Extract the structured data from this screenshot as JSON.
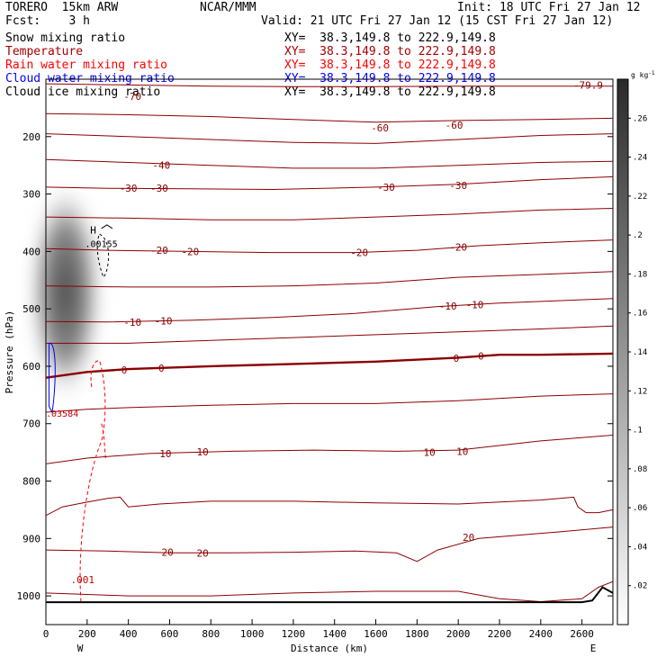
{
  "header": {
    "model": "TORERO  15km ARW",
    "center": "NCAR/MMM",
    "init": "Init: 18 UTC Fri 27 Jan 12",
    "fcst": "Fcst:    3 h",
    "valid": "Valid: 21 UTC Fri 27 Jan 12 (15 CST Fri 27 Jan 12)"
  },
  "legend": [
    {
      "name": "Snow mixing ratio",
      "color": "#000000",
      "xy": "XY=  38.3,149.8 to 222.9,149.8"
    },
    {
      "name": "Temperature",
      "color": "#a50000",
      "xy": "XY=  38.3,149.8 to 222.9,149.8"
    },
    {
      "name": "Rain water mixing ratio",
      "color": "#ff0000",
      "xy": "XY=  38.3,149.8 to 222.9,149.8"
    },
    {
      "name": "Cloud water mixing ratio",
      "color": "#0000ff",
      "xy": "XY=  38.3,149.8 to 222.9,149.8"
    },
    {
      "name": "Cloud ice mixing ratio",
      "color": "#000000",
      "xy": "XY=  38.3,149.8 to 222.9,149.8"
    }
  ],
  "chart_data": {
    "type": "contour-cross-section",
    "xlabel": "Distance (km)",
    "ylabel": "Pressure (hPa)",
    "xlim": [
      0,
      2750
    ],
    "ylim": [
      1050,
      100
    ],
    "x_ticks": [
      0,
      200,
      400,
      600,
      800,
      1000,
      1200,
      1400,
      1600,
      1800,
      2000,
      2200,
      2400,
      2600
    ],
    "y_ticks": [
      200,
      300,
      400,
      500,
      600,
      700,
      800,
      900,
      1000
    ],
    "end_labels": {
      "left": "W",
      "right": "E"
    },
    "colorbar": {
      "unit": "g kg",
      "unit_exp": "-1",
      "ticks": [
        ".02",
        ".04",
        ".06",
        ".08",
        ".1",
        ".12",
        ".14",
        ".16",
        ".18",
        ".2",
        ".22",
        ".24",
        ".26"
      ],
      "range": [
        0,
        0.28
      ]
    },
    "temperature_labels": [
      {
        "text": "-79.9",
        "x": 2630,
        "p": 110
      },
      {
        "text": "-70",
        "x": 420,
        "p": 130
      },
      {
        "text": "-60",
        "x": 1620,
        "p": 185
      },
      {
        "text": "-60",
        "x": 1980,
        "p": 180
      },
      {
        "text": "-40",
        "x": 560,
        "p": 250
      },
      {
        "text": "-30",
        "x": 400,
        "p": 290
      },
      {
        "text": "-30",
        "x": 550,
        "p": 290
      },
      {
        "text": "-30",
        "x": 1650,
        "p": 288
      },
      {
        "text": "-30",
        "x": 2000,
        "p": 285
      },
      {
        "text": "-20",
        "x": 550,
        "p": 398
      },
      {
        "text": "-20",
        "x": 700,
        "p": 400
      },
      {
        "text": "-20",
        "x": 1520,
        "p": 402
      },
      {
        "text": "-20",
        "x": 2000,
        "p": 392
      },
      {
        "text": "-10",
        "x": 420,
        "p": 523
      },
      {
        "text": "-10",
        "x": 570,
        "p": 521
      },
      {
        "text": "-10",
        "x": 1950,
        "p": 495
      },
      {
        "text": "-10",
        "x": 2080,
        "p": 493
      },
      {
        "text": "0",
        "x": 380,
        "p": 606
      },
      {
        "text": "0",
        "x": 560,
        "p": 603
      },
      {
        "text": "0",
        "x": 1990,
        "p": 586
      },
      {
        "text": "0",
        "x": 2110,
        "p": 582
      },
      {
        "text": "10",
        "x": 580,
        "p": 752
      },
      {
        "text": "10",
        "x": 760,
        "p": 749
      },
      {
        "text": "10",
        "x": 1860,
        "p": 750
      },
      {
        "text": "10",
        "x": 2020,
        "p": 748
      },
      {
        "text": "20",
        "x": 590,
        "p": 924
      },
      {
        "text": "20",
        "x": 760,
        "p": 925
      },
      {
        "text": "20",
        "x": 2050,
        "p": 898
      }
    ],
    "temperature_contours": [
      {
        "value": -70,
        "points": [
          [
            0,
            108
          ],
          [
            400,
            110
          ],
          [
            800,
            112
          ],
          [
            1200,
            113
          ],
          [
            1600,
            113
          ],
          [
            2000,
            112
          ],
          [
            2400,
            112
          ],
          [
            2750,
            112
          ]
        ]
      },
      {
        "value": -60,
        "points": [
          [
            0,
            160
          ],
          [
            400,
            162
          ],
          [
            800,
            165
          ],
          [
            1200,
            170
          ],
          [
            1600,
            175
          ],
          [
            2000,
            172
          ],
          [
            2400,
            170
          ],
          [
            2750,
            168
          ]
        ]
      },
      {
        "value": -50,
        "points": [
          [
            0,
            195
          ],
          [
            400,
            200
          ],
          [
            800,
            205
          ],
          [
            1200,
            210
          ],
          [
            1600,
            212
          ],
          [
            2000,
            205
          ],
          [
            2400,
            198
          ],
          [
            2750,
            195
          ]
        ]
      },
      {
        "value": -40,
        "points": [
          [
            0,
            240
          ],
          [
            400,
            245
          ],
          [
            800,
            250
          ],
          [
            1200,
            255
          ],
          [
            1600,
            255
          ],
          [
            2000,
            250
          ],
          [
            2400,
            245
          ],
          [
            2750,
            243
          ]
        ]
      },
      {
        "value": -30,
        "points": [
          [
            0,
            288
          ],
          [
            300,
            290
          ],
          [
            700,
            291
          ],
          [
            1100,
            292
          ],
          [
            1600,
            288
          ],
          [
            2000,
            283
          ],
          [
            2400,
            275
          ],
          [
            2750,
            270
          ]
        ]
      },
      {
        "value": -25,
        "points": [
          [
            0,
            340
          ],
          [
            400,
            342
          ],
          [
            800,
            345
          ],
          [
            1200,
            345
          ],
          [
            1600,
            340
          ],
          [
            2000,
            335
          ],
          [
            2400,
            328
          ],
          [
            2750,
            325
          ]
        ]
      },
      {
        "value": -20,
        "points": [
          [
            0,
            395
          ],
          [
            300,
            398
          ],
          [
            700,
            400
          ],
          [
            1100,
            402
          ],
          [
            1500,
            402
          ],
          [
            1800,
            398
          ],
          [
            2100,
            390
          ],
          [
            2400,
            385
          ],
          [
            2750,
            380
          ]
        ]
      },
      {
        "value": -15,
        "points": [
          [
            0,
            460
          ],
          [
            400,
            462
          ],
          [
            800,
            462
          ],
          [
            1200,
            460
          ],
          [
            1600,
            455
          ],
          [
            2000,
            445
          ],
          [
            2400,
            440
          ],
          [
            2750,
            435
          ]
        ]
      },
      {
        "value": -10,
        "points": [
          [
            0,
            522
          ],
          [
            300,
            523
          ],
          [
            700,
            520
          ],
          [
            1100,
            515
          ],
          [
            1500,
            508
          ],
          [
            1900,
            496
          ],
          [
            2200,
            490
          ],
          [
            2750,
            482
          ]
        ]
      },
      {
        "value": -5,
        "points": [
          [
            0,
            560
          ],
          [
            400,
            560
          ],
          [
            800,
            555
          ],
          [
            1200,
            550
          ],
          [
            1600,
            545
          ],
          [
            2000,
            540
          ],
          [
            2400,
            535
          ],
          [
            2750,
            530
          ]
        ]
      },
      {
        "value": 0,
        "points": [
          [
            0,
            620
          ],
          [
            200,
            610
          ],
          [
            400,
            605
          ],
          [
            800,
            600
          ],
          [
            1200,
            596
          ],
          [
            1600,
            592
          ],
          [
            2000,
            585
          ],
          [
            2200,
            580
          ],
          [
            2400,
            580
          ],
          [
            2750,
            578
          ]
        ]
      },
      {
        "value": 5,
        "points": [
          [
            0,
            680
          ],
          [
            200,
            675
          ],
          [
            400,
            672
          ],
          [
            800,
            668
          ],
          [
            1200,
            665
          ],
          [
            1600,
            665
          ],
          [
            2000,
            660
          ],
          [
            2400,
            652
          ],
          [
            2750,
            648
          ]
        ]
      },
      {
        "value": 10,
        "points": [
          [
            0,
            770
          ],
          [
            200,
            760
          ],
          [
            500,
            752
          ],
          [
            900,
            748
          ],
          [
            1300,
            746
          ],
          [
            1700,
            748
          ],
          [
            2000,
            746
          ],
          [
            2400,
            730
          ],
          [
            2750,
            720
          ]
        ]
      },
      {
        "value": 15,
        "points": [
          [
            0,
            860
          ],
          [
            80,
            845
          ],
          [
            180,
            838
          ],
          [
            300,
            830
          ],
          [
            360,
            828
          ],
          [
            400,
            845
          ],
          [
            550,
            840
          ],
          [
            800,
            835
          ],
          [
            1200,
            835
          ],
          [
            1600,
            838
          ],
          [
            2000,
            840
          ],
          [
            2400,
            833
          ],
          [
            2560,
            828
          ],
          [
            2580,
            845
          ],
          [
            2620,
            855
          ],
          [
            2680,
            855
          ],
          [
            2750,
            850
          ]
        ]
      },
      {
        "value": 20,
        "points": [
          [
            0,
            920
          ],
          [
            300,
            922
          ],
          [
            600,
            925
          ],
          [
            900,
            925
          ],
          [
            1200,
            924
          ],
          [
            1500,
            922
          ],
          [
            1700,
            925
          ],
          [
            1800,
            940
          ],
          [
            1900,
            920
          ],
          [
            2100,
            900
          ],
          [
            2300,
            894
          ],
          [
            2500,
            888
          ],
          [
            2750,
            880
          ]
        ]
      },
      {
        "value": 25,
        "points": [
          [
            0,
            995
          ],
          [
            400,
            1000
          ],
          [
            800,
            1000
          ],
          [
            1200,
            995
          ],
          [
            1600,
            992
          ],
          [
            2000,
            992
          ],
          [
            2200,
            1005
          ],
          [
            2400,
            1010
          ],
          [
            2600,
            1005
          ],
          [
            2680,
            985
          ],
          [
            2750,
            975
          ]
        ]
      }
    ],
    "ground_line": [
      [
        0,
        1011
      ],
      [
        2600,
        1011
      ],
      [
        2650,
        1008
      ],
      [
        2700,
        985
      ],
      [
        2750,
        995
      ]
    ],
    "snow_contour_label": "H",
    "snow_label": ".00155",
    "cloud_water_label": ".03584",
    "rain_label": ".001"
  }
}
